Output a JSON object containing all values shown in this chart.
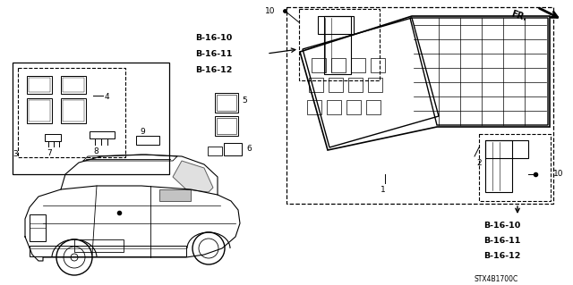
{
  "background": "#ffffff",
  "fig_width": 6.4,
  "fig_height": 3.19,
  "dpi": 100,
  "diagram_code": "STX4B1700C",
  "ref_labels_top": [
    "B-16-10",
    "B-16-11",
    "B-16-12"
  ],
  "ref_labels_bot": [
    "B-16-10",
    "B-16-11",
    "B-16-12"
  ],
  "label_fontsize": 6.5,
  "ref_fontsize": 6.8
}
